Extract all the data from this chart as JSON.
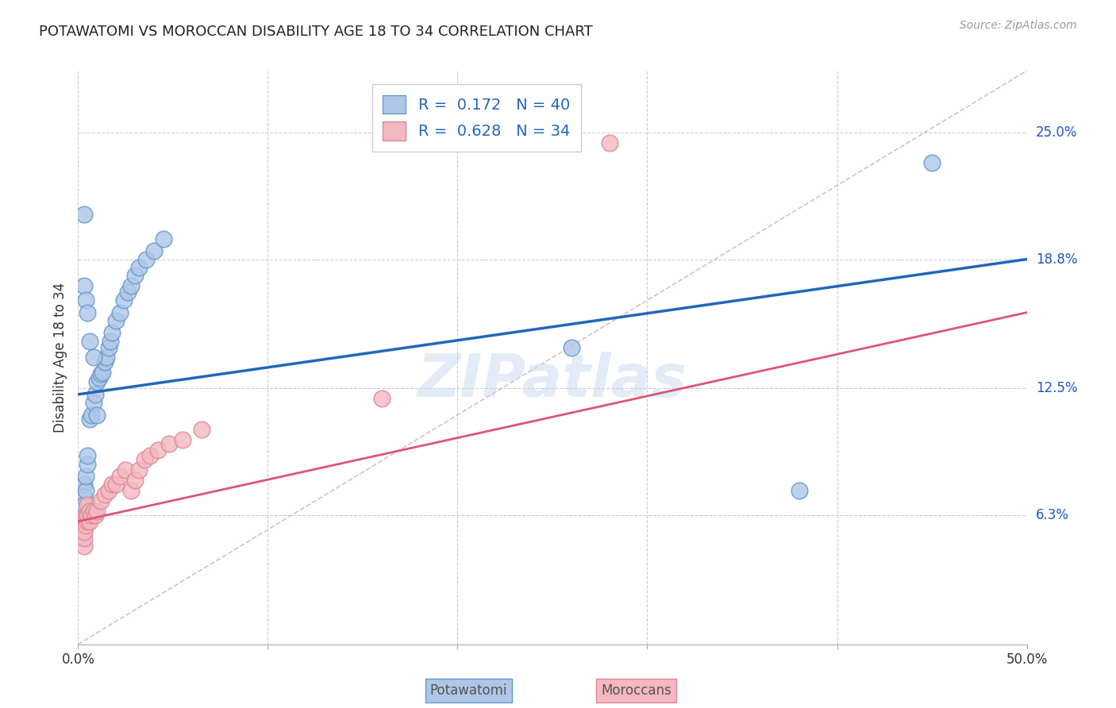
{
  "title": "POTAWATOMI VS MOROCCAN DISABILITY AGE 18 TO 34 CORRELATION CHART",
  "source": "Source: ZipAtlas.com",
  "ylabel": "Disability Age 18 to 34",
  "xlim": [
    0.0,
    0.5
  ],
  "ylim": [
    0.0,
    0.28
  ],
  "ytick_positions": [
    0.063,
    0.125,
    0.188,
    0.25
  ],
  "ytick_labels": [
    "6.3%",
    "12.5%",
    "18.8%",
    "25.0%"
  ],
  "watermark": "ZIPatlas",
  "blue_scatter_x": [
    0.003,
    0.003,
    0.003,
    0.004,
    0.004,
    0.005,
    0.005,
    0.006,
    0.007,
    0.008,
    0.009,
    0.01,
    0.011,
    0.012,
    0.013,
    0.014,
    0.015,
    0.016,
    0.017,
    0.018,
    0.02,
    0.022,
    0.024,
    0.026,
    0.028,
    0.03,
    0.032,
    0.036,
    0.04,
    0.045,
    0.003,
    0.003,
    0.004,
    0.005,
    0.006,
    0.008,
    0.01,
    0.26,
    0.38,
    0.45
  ],
  "blue_scatter_y": [
    0.078,
    0.072,
    0.068,
    0.075,
    0.082,
    0.088,
    0.092,
    0.11,
    0.112,
    0.118,
    0.122,
    0.128,
    0.13,
    0.132,
    0.133,
    0.138,
    0.14,
    0.145,
    0.148,
    0.152,
    0.158,
    0.162,
    0.168,
    0.172,
    0.175,
    0.18,
    0.184,
    0.188,
    0.192,
    0.198,
    0.21,
    0.175,
    0.168,
    0.162,
    0.148,
    0.14,
    0.112,
    0.145,
    0.075,
    0.235
  ],
  "pink_scatter_x": [
    0.003,
    0.003,
    0.003,
    0.003,
    0.003,
    0.004,
    0.004,
    0.005,
    0.005,
    0.005,
    0.006,
    0.006,
    0.007,
    0.008,
    0.009,
    0.01,
    0.012,
    0.014,
    0.016,
    0.018,
    0.02,
    0.022,
    0.025,
    0.028,
    0.03,
    0.032,
    0.035,
    0.038,
    0.042,
    0.048,
    0.055,
    0.065,
    0.16,
    0.28
  ],
  "pink_scatter_y": [
    0.048,
    0.052,
    0.055,
    0.06,
    0.062,
    0.058,
    0.063,
    0.06,
    0.063,
    0.068,
    0.06,
    0.065,
    0.063,
    0.065,
    0.063,
    0.065,
    0.07,
    0.073,
    0.075,
    0.078,
    0.078,
    0.082,
    0.085,
    0.075,
    0.08,
    0.085,
    0.09,
    0.092,
    0.095,
    0.098,
    0.1,
    0.105,
    0.12,
    0.245
  ],
  "blue_line_start_y": 0.122,
  "blue_line_end_y": 0.188,
  "pink_line_start_y": 0.06,
  "pink_line_end_y": 0.162,
  "blue_line_color": "#2266bb",
  "pink_line_color": "#dd5577",
  "dashed_line_color": "#ddbbcc",
  "grid_color": "#cccccc",
  "bg_color": "#ffffff",
  "scatter_blue_fill": "#aec6e8",
  "scatter_pink_fill": "#f4b8c1",
  "scatter_blue_edge": "#6699cc",
  "scatter_pink_edge": "#dd8899",
  "legend_blue_label": "R =  0.172   N = 40",
  "legend_pink_label": "R =  0.628   N = 34",
  "bottom_label_blue": "Potawatomi",
  "bottom_label_pink": "Moroccans"
}
